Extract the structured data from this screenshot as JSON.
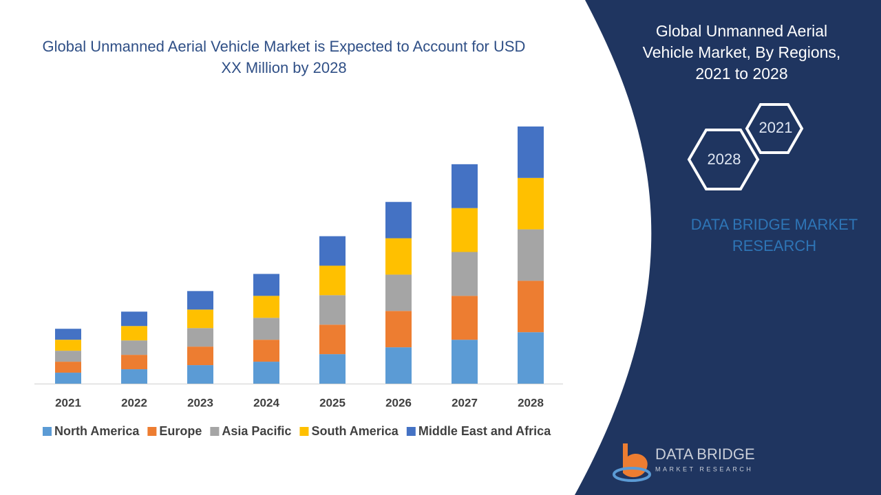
{
  "chart_data": {
    "type": "stacked-bar",
    "title": "Global Unmanned Aerial Vehicle Market is Expected to Account for USD XX Million by 2028",
    "categories": [
      "2021",
      "2022",
      "2023",
      "2024",
      "2025",
      "2026",
      "2027",
      "2028"
    ],
    "series": [
      {
        "name": "North America",
        "color": "#5b9bd5",
        "values": [
          16,
          21,
          27,
          32,
          43,
          53,
          64,
          75
        ]
      },
      {
        "name": "Europe",
        "color": "#ed7d31",
        "values": [
          16,
          21,
          27,
          32,
          43,
          53,
          64,
          75
        ]
      },
      {
        "name": "Asia Pacific",
        "color": "#a5a5a5",
        "values": [
          16,
          21,
          27,
          32,
          43,
          53,
          64,
          75
        ]
      },
      {
        "name": "South America",
        "color": "#ffc000",
        "values": [
          16,
          21,
          27,
          32,
          43,
          53,
          64,
          75
        ]
      },
      {
        "name": "Middle East and Africa",
        "color": "#4472c4",
        "values": [
          16,
          21,
          27,
          32,
          43,
          53,
          64,
          75
        ]
      }
    ],
    "legend": "bottom"
  },
  "panel": {
    "title": "Global Unmanned Aerial Vehicle Market, By Regions, 2021 to 2028",
    "hex_start": "2021",
    "hex_end": "2028",
    "brand": "DATA BRIDGE MARKET RESEARCH"
  },
  "logo": {
    "name": "DATA BRIDGE",
    "tagline": "MARKET RESEARCH"
  }
}
